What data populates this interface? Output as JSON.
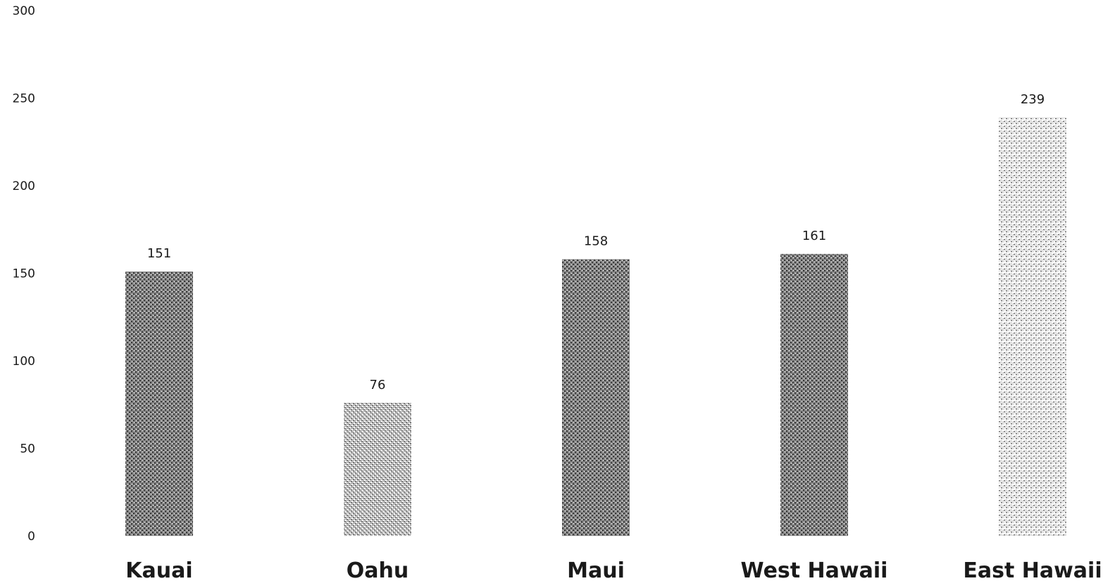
{
  "chart_data": {
    "type": "bar",
    "title": "",
    "xlabel": "",
    "ylabel": "",
    "categories": [
      "Kauai",
      "Oahu",
      "Maui",
      "West Hawaii",
      "East Hawaii"
    ],
    "values": [
      151,
      76,
      158,
      161,
      239
    ],
    "data_labels": [
      "151",
      "76",
      "158",
      "161",
      "239"
    ],
    "ylim": [
      0,
      300
    ],
    "yticks": [
      0,
      50,
      100,
      150,
      200,
      250,
      300
    ],
    "ytick_labels": [
      "0",
      "50",
      "100",
      "150",
      "200",
      "250",
      "300"
    ],
    "grid": false,
    "legend": "none",
    "bar_styles": [
      {
        "category": "Kauai",
        "shade": "dense"
      },
      {
        "category": "Oahu",
        "shade": "light"
      },
      {
        "category": "Maui",
        "shade": "dense"
      },
      {
        "category": "West Hawaii",
        "shade": "dense"
      },
      {
        "category": "East Hawaii",
        "shade": "lightest"
      }
    ],
    "colors": {
      "bar_dense": "#6e6e6e",
      "bar_light": "#9a9a9a",
      "bar_lightest": "#c4c4c4",
      "text": "#1a1a1a"
    }
  }
}
